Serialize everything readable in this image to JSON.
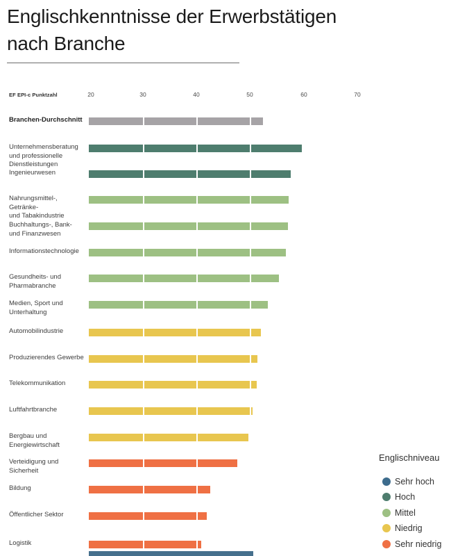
{
  "header": {
    "title_lines": [
      "Englischkenntnisse der Erwerbstätigen",
      "nach Branche"
    ]
  },
  "axis": {
    "label": "EF EPI-c Punktzahl",
    "ticks": [
      "20",
      "30",
      "40",
      "50",
      "60",
      "70"
    ]
  },
  "chart_data": {
    "type": "bar",
    "orientation": "horizontal",
    "title": "Englischkenntnisse der Erwerbstätigen nach Branche",
    "xlabel": "EF EPI-c Punktzahl",
    "xlim": [
      20,
      75
    ],
    "x_ticks": [
      20,
      30,
      40,
      50,
      60,
      70
    ],
    "grid": "white vertical separators drawn over bars at tick positions",
    "legend_position": "bottom-right",
    "rows": [
      {
        "label": "Branchen-Durchschnitt",
        "value": 52.5,
        "level": "Branchen-Durchschnitt",
        "color": "#a6a3a6",
        "bold": true
      },
      {
        "label": "Unternehmensberatung\nund professionelle\nDienstleistungen",
        "value": 59.8,
        "level": "Hoch",
        "color": "#4e7d6e",
        "bold": false
      },
      {
        "label": "Ingenieurwesen",
        "value": 57.7,
        "level": "Hoch",
        "color": "#4e7d6e",
        "bold": false
      },
      {
        "label": "Nahrungsmittel-, Getränke-\nund Tabakindustrie",
        "value": 57.3,
        "level": "Mittel",
        "color": "#9dc083",
        "bold": false
      },
      {
        "label": "Buchhaltungs-, Bank-\nund Finanzwesen",
        "value": 57.2,
        "level": "Mittel",
        "color": "#9dc083",
        "bold": false
      },
      {
        "label": "Informationstechnologie",
        "value": 56.8,
        "level": "Mittel",
        "color": "#9dc083",
        "bold": false
      },
      {
        "label": "Gesundheits- und\nPharmabranche",
        "value": 55.5,
        "level": "Mittel",
        "color": "#9dc083",
        "bold": false
      },
      {
        "label": "Medien, Sport und\nUnterhaltung",
        "value": 53.4,
        "level": "Mittel",
        "color": "#9dc083",
        "bold": false
      },
      {
        "label": "Automobilindustrie",
        "value": 52.1,
        "level": "Niedrig",
        "color": "#e8c64f",
        "bold": false
      },
      {
        "label": "Produzierendes Gewerbe",
        "value": 51.5,
        "level": "Niedrig",
        "color": "#e8c64f",
        "bold": false
      },
      {
        "label": "Telekommunikation",
        "value": 51.3,
        "level": "Niedrig",
        "color": "#e8c64f",
        "bold": false
      },
      {
        "label": "Luftfahrtbranche",
        "value": 50.6,
        "level": "Niedrig",
        "color": "#e8c64f",
        "bold": false
      },
      {
        "label": "Bergbau und\nEnergiewirtschaft",
        "value": 49.8,
        "level": "Niedrig",
        "color": "#e8c64f",
        "bold": false
      },
      {
        "label": "Verteidigung und\nSicherheit",
        "value": 47.7,
        "level": "Sehr niedrig",
        "color": "#ef7044",
        "bold": false
      },
      {
        "label": "Bildung",
        "value": 42.7,
        "level": "Sehr niedrig",
        "color": "#ef7044",
        "bold": false
      },
      {
        "label": "Öffentlicher Sektor",
        "value": 42.0,
        "level": "Sehr niedrig",
        "color": "#ef7044",
        "bold": false
      },
      {
        "label": "Logistik",
        "value": 41.0,
        "level": "Sehr niedrig",
        "color": "#ef7044",
        "bold": false
      }
    ]
  },
  "legend": {
    "title": "Englischniveau",
    "items": [
      {
        "label": "Sehr hoch",
        "color": "#3d6c8d"
      },
      {
        "label": "Hoch",
        "color": "#4e7d6e"
      },
      {
        "label": "Mittel",
        "color": "#9dc083"
      },
      {
        "label": "Niedrig",
        "color": "#e8c64f"
      },
      {
        "label": "Sehr niedrig",
        "color": "#ef7044"
      }
    ]
  },
  "cutoff_bar": {
    "color": "#46708d"
  }
}
